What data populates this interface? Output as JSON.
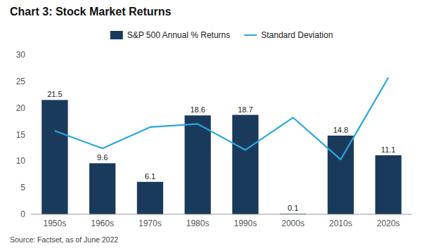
{
  "chart_data": {
    "type": "bar",
    "title": "Chart 3: Stock Market Returns",
    "categories": [
      "1950s",
      "1960s",
      "1970s",
      "1980s",
      "1990s",
      "2000s",
      "2010s",
      "2020s"
    ],
    "series": [
      {
        "name": "S&P 500 Annual % Returns",
        "type": "bar",
        "color": "#1a3a5c",
        "data_labels": true,
        "values": [
          21.5,
          9.6,
          6.1,
          18.6,
          18.7,
          0.1,
          14.8,
          11.1
        ]
      },
      {
        "name": "Standard Deviation",
        "type": "line",
        "color": "#29a8e0",
        "values": [
          15.7,
          12.4,
          16.4,
          17.0,
          12.1,
          18.2,
          10.3,
          25.7
        ]
      }
    ],
    "ylim": [
      0,
      30
    ],
    "yticks": [
      0,
      5,
      10,
      15,
      20,
      25,
      30
    ],
    "annotations": [
      "Source: Factset, as of June 2022"
    ],
    "grid": false,
    "legend": "top"
  }
}
